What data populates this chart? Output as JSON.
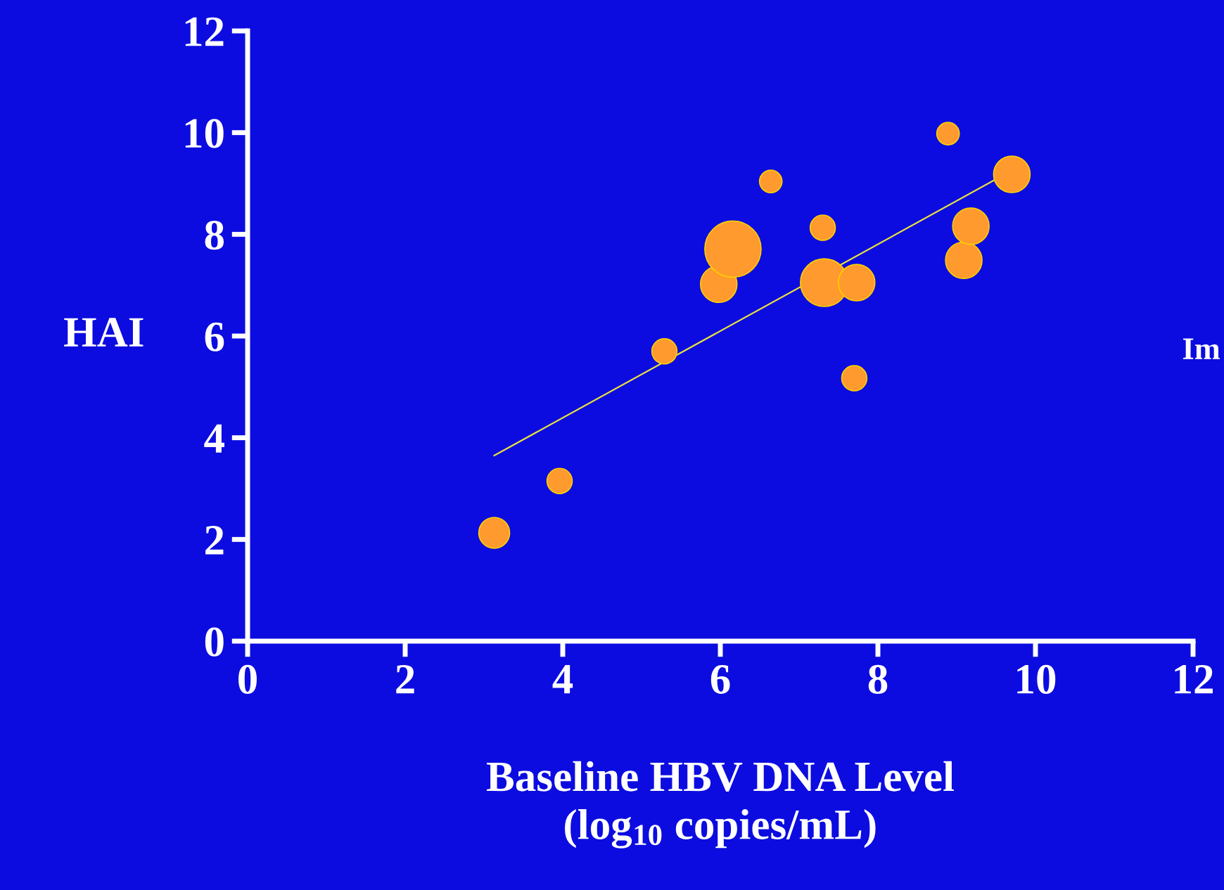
{
  "chart_data": {
    "type": "bubble",
    "xlabel": "Baseline HBV DNA Level\n(log$_{10}$ copies/mL)",
    "ylabel": "HAI",
    "xlim": [
      0,
      12
    ],
    "ylim": [
      0,
      12
    ],
    "xticks": [
      0,
      2,
      4,
      6,
      8,
      10,
      12
    ],
    "yticks": [
      0,
      2,
      4,
      6,
      8,
      10,
      12
    ],
    "grid": false,
    "series": [
      {
        "color": "#ff9a2e",
        "x": [
          3.13,
          3.96,
          5.29,
          5.98,
          6.16,
          6.64,
          7.3,
          7.32,
          7.73,
          7.7,
          8.89,
          9.09,
          9.18,
          9.7
        ],
        "values": [
          2.13,
          3.15,
          5.7,
          7.02,
          7.71,
          9.04,
          8.13,
          7.05,
          7.05,
          5.17,
          9.98,
          7.49,
          8.16,
          9.18
        ],
        "sizes": [
          0.3,
          0.2,
          0.2,
          0.42,
          1,
          0.16,
          0.2,
          0.72,
          0.42,
          0.2,
          0.16,
          0.42,
          0.42,
          0.42
        ]
      },
      {
        "type": "line",
        "color": "#e8e040",
        "x": [
          3.13,
          9.54
        ],
        "values": [
          3.65,
          9.12
        ]
      }
    ],
    "annotations": [
      "Im"
    ]
  }
}
